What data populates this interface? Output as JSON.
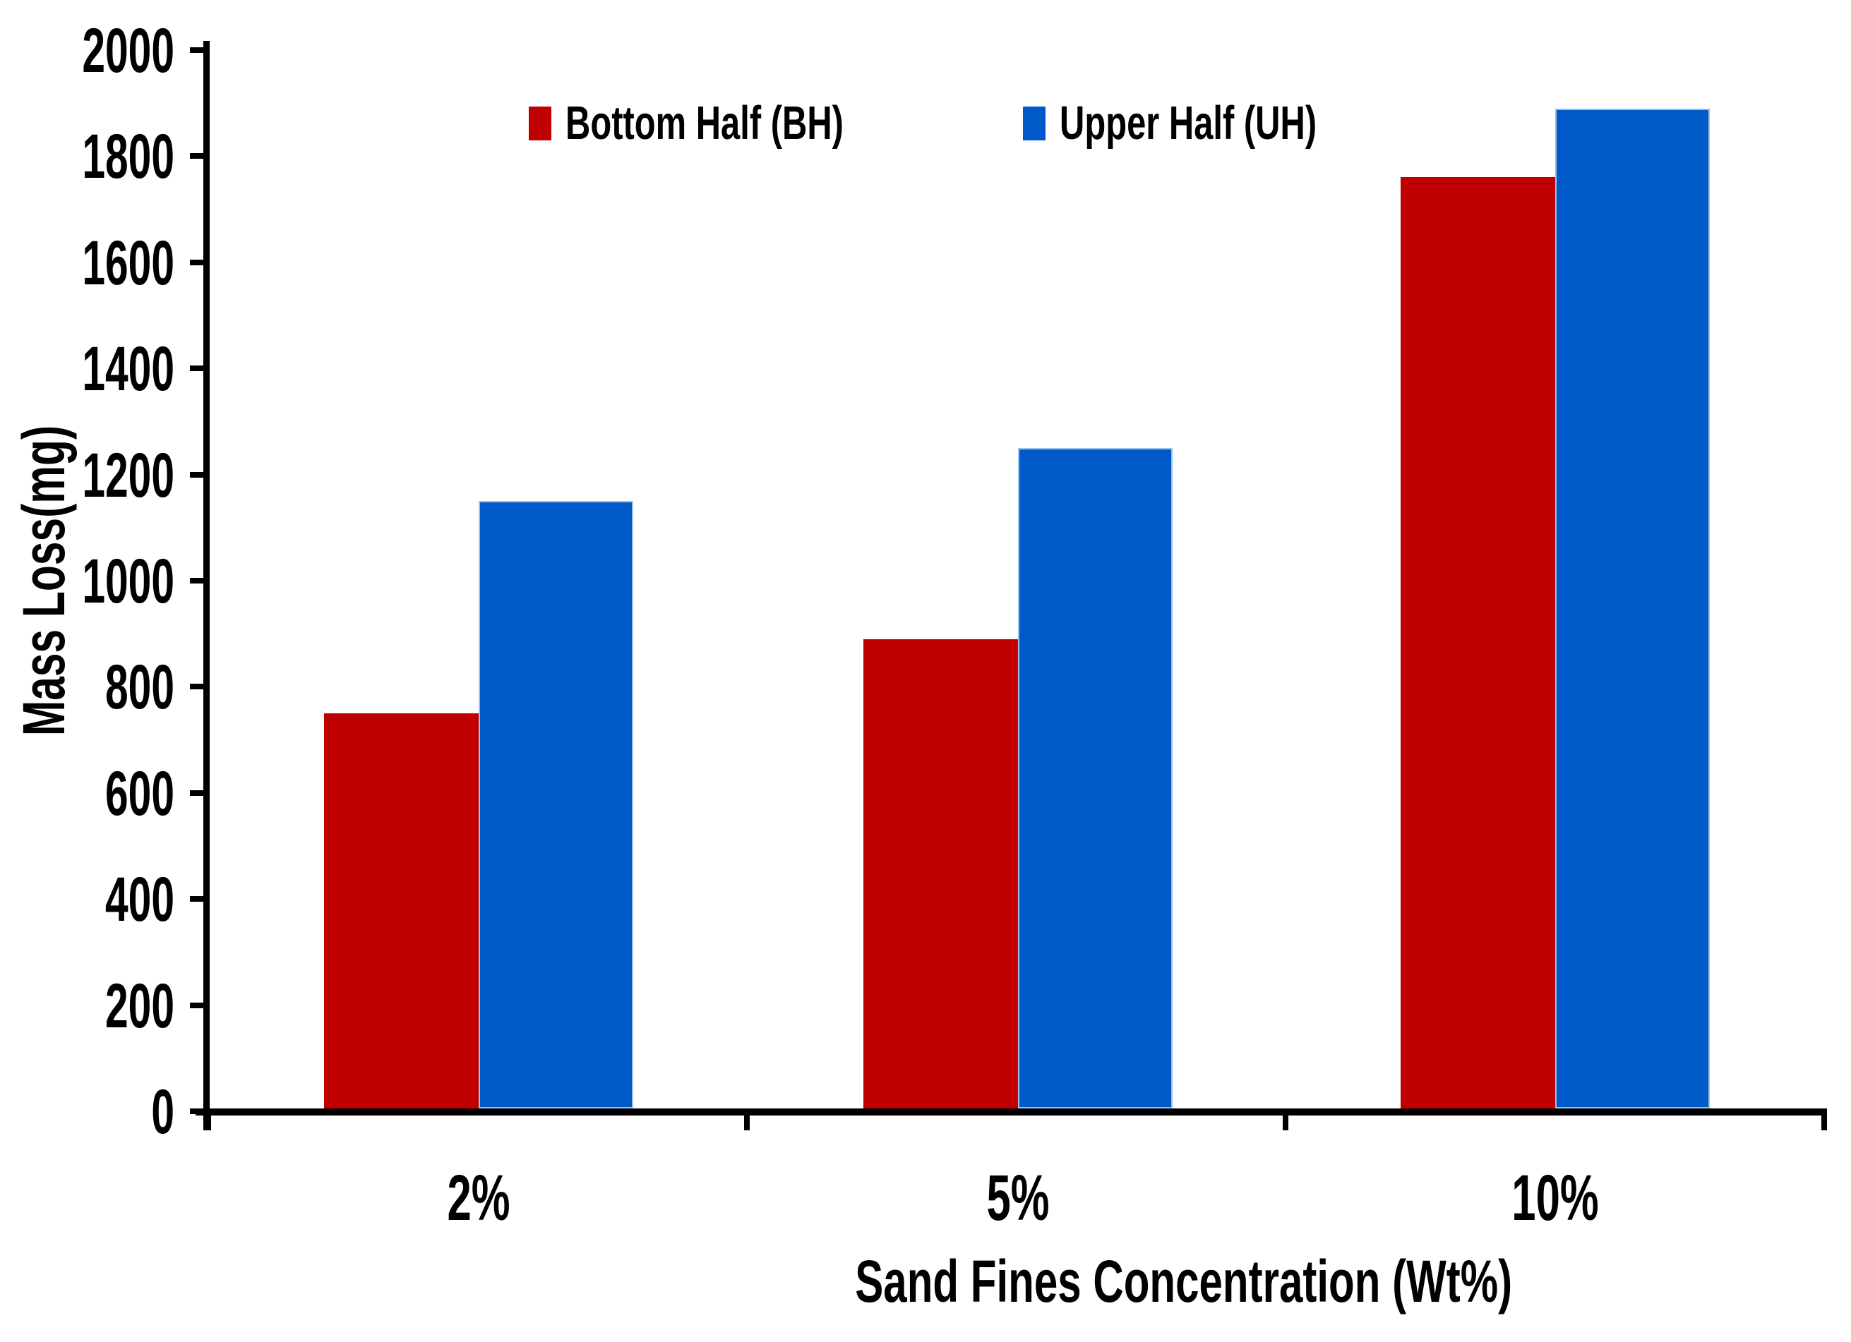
{
  "chart_data": {
    "type": "bar",
    "title": "",
    "categories": [
      "2%",
      "5%",
      "10%"
    ],
    "series": [
      {
        "name": "Bottom Half (BH)",
        "color": "#C00000",
        "values": [
          750,
          890,
          1760
        ]
      },
      {
        "name": "Upper Half (UH)",
        "color": "#0059C8",
        "values": [
          1150,
          1250,
          1890
        ]
      }
    ],
    "xlabel": "Sand Fines Concentration (Wt%)",
    "ylabel": "Mass Loss(mg)",
    "ylim": [
      0,
      2000
    ],
    "ytick_step": 200,
    "ytick_labels": [
      "0",
      "200",
      "400",
      "600",
      "800",
      "1000",
      "1200",
      "1400",
      "1600",
      "1800",
      "2000"
    ],
    "legend_position": "top-center",
    "grid": false,
    "axis_color": "#000000",
    "text_color": "#000000",
    "background_color": "#ffffff"
  }
}
